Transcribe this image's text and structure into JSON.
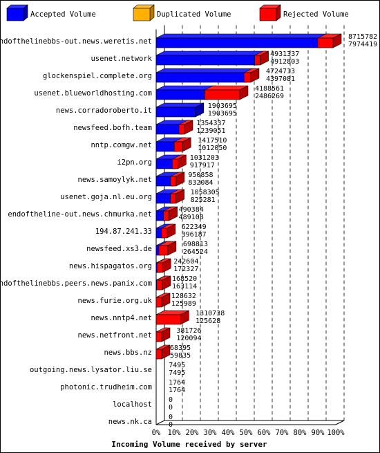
{
  "chart_data": {
    "type": "bar",
    "orientation": "horizontal",
    "xlabel": "Incoming Volume received by server",
    "x_ticks": [
      "0%",
      "10%",
      "20%",
      "30%",
      "40%",
      "50%",
      "60%",
      "70%",
      "80%",
      "90%",
      "100%"
    ],
    "xlim_percent": [
      0,
      100
    ],
    "grid": "vertical dashed",
    "legend_placement": "top",
    "legend": [
      {
        "label": "Accepted Volume",
        "color": "#0000ff"
      },
      {
        "label": "Duplicated Volume",
        "color": "#ffb000"
      },
      {
        "label": "Rejected Volume",
        "color": "#ff0000"
      }
    ],
    "max_total": 8715782,
    "categories": [
      "endofthelinebbs-out.news.weretis.net",
      "usenet.network",
      "glockenspiel.complete.org",
      "usenet.blueworldhosting.com",
      "news.corradoroberto.it",
      "newsfeed.bofh.team",
      "nntp.comgw.net",
      "i2pn.org",
      "news.samoylyk.net",
      "usenet.goja.nl.eu.org",
      "endoftheline-out.news.chmurka.net",
      "194.87.241.33",
      "newsfeed.xs3.de",
      "news.hispagatos.org",
      "endofthelinebbs.peers.news.panix.com",
      "news.furie.org.uk",
      "news.nntp4.net",
      "news.netfront.net",
      "news.bbs.nz",
      "outgoing.news.lysator.liu.se",
      "photonic.trudheim.com",
      "localhost",
      "news.nk.ca"
    ],
    "series": [
      {
        "name": "Total",
        "values": [
          8715782,
          4931337,
          4724713,
          4188561,
          1903695,
          1354337,
          1417510,
          1031203,
          950858,
          1058305,
          490384,
          622349,
          698813,
          242604,
          168520,
          128632,
          1310738,
          381726,
          68395,
          7495,
          1764,
          0,
          0
        ]
      },
      {
        "name": "Accepted Volume",
        "values": [
          7974419,
          4912803,
          4397081,
          2486269,
          1903695,
          1239051,
          1012050,
          917917,
          832084,
          825281,
          489108,
          396187,
          264524,
          172327,
          163114,
          125989,
          125628,
          120094,
          59835,
          7495,
          1764,
          0,
          0
        ]
      }
    ]
  }
}
